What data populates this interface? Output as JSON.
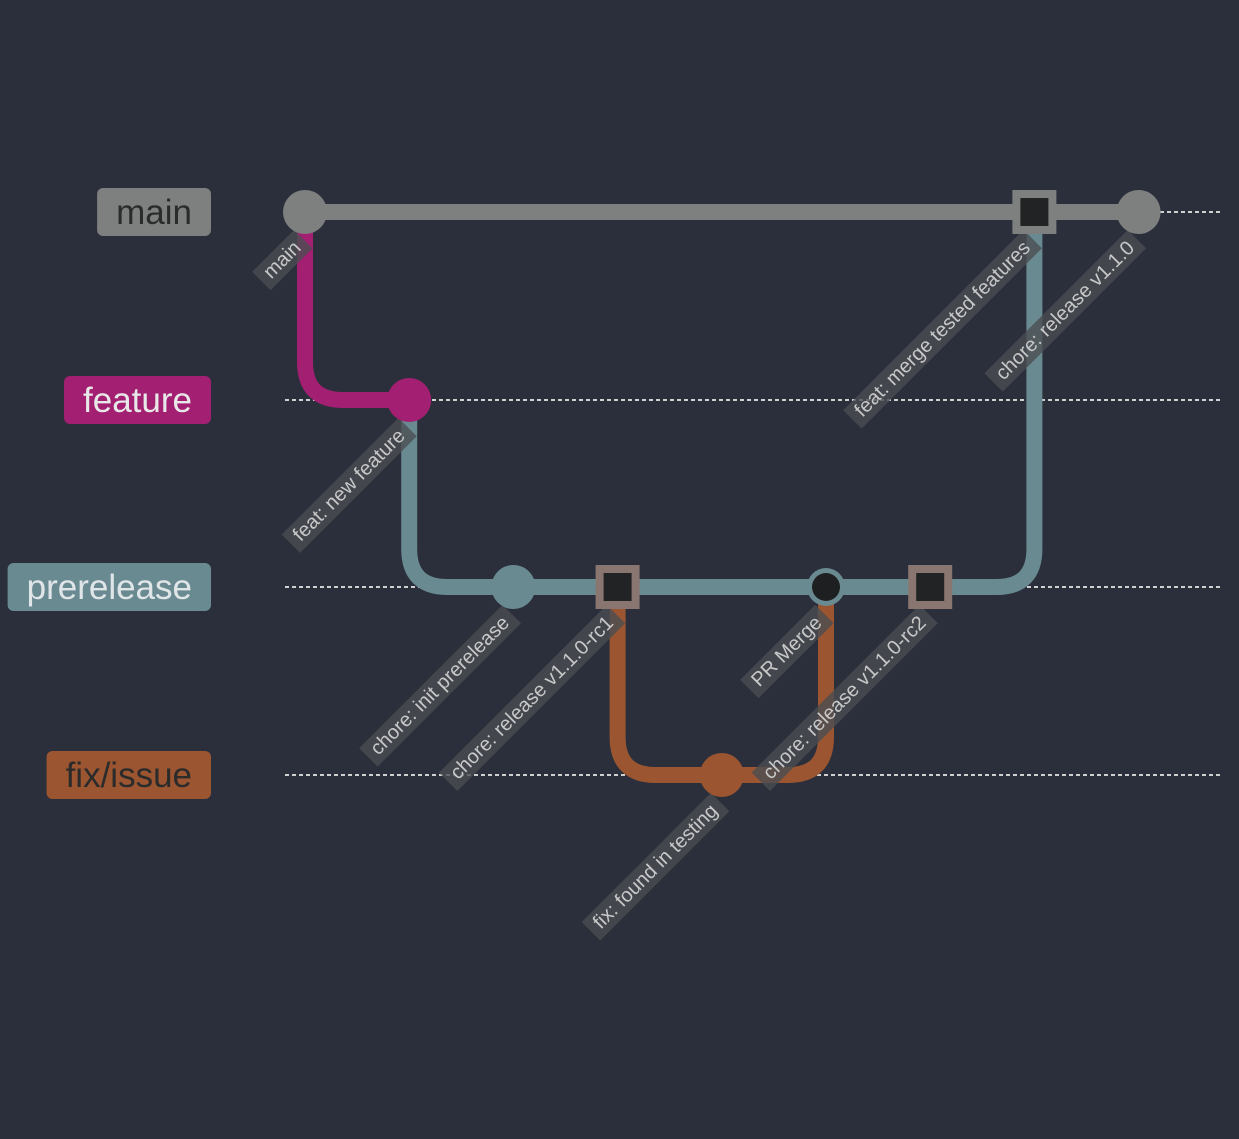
{
  "diagram": {
    "type": "git-graph",
    "background": "#2a2f3b",
    "branches": [
      {
        "id": "main",
        "label": "main",
        "color": "#7e8080",
        "label_text_color": "#2b2b2b"
      },
      {
        "id": "feature",
        "label": "feature",
        "color": "#a31f72",
        "label_text_color": "#e8e8e8"
      },
      {
        "id": "prerelease",
        "label": "prerelease",
        "color": "#6a8a92",
        "label_text_color": "#e0e6e8"
      },
      {
        "id": "fix",
        "label": "fix/issue",
        "color": "#9b5530",
        "label_text_color": "#2b2b2b"
      }
    ],
    "commits": [
      {
        "id": "c1",
        "branch": "main",
        "label": "main",
        "kind": "normal"
      },
      {
        "id": "c2",
        "branch": "feature",
        "label": "feat: new feature",
        "kind": "normal"
      },
      {
        "id": "c3",
        "branch": "prerelease",
        "label": "chore: init prerelease",
        "kind": "normal"
      },
      {
        "id": "c4",
        "branch": "prerelease",
        "label": "chore: release v1.1.0-rc1",
        "kind": "highlight"
      },
      {
        "id": "c5",
        "branch": "fix",
        "label": "fix: found in testing",
        "kind": "normal"
      },
      {
        "id": "c6",
        "branch": "prerelease",
        "label": "PR Merge",
        "kind": "merge"
      },
      {
        "id": "c7",
        "branch": "prerelease",
        "label": "chore: release v1.1.0-rc2",
        "kind": "highlight"
      },
      {
        "id": "c8",
        "branch": "main",
        "label": "feat: merge tested features",
        "kind": "highlight"
      },
      {
        "id": "c9",
        "branch": "main",
        "label": "chore: release v1.1.0",
        "kind": "normal"
      }
    ]
  }
}
